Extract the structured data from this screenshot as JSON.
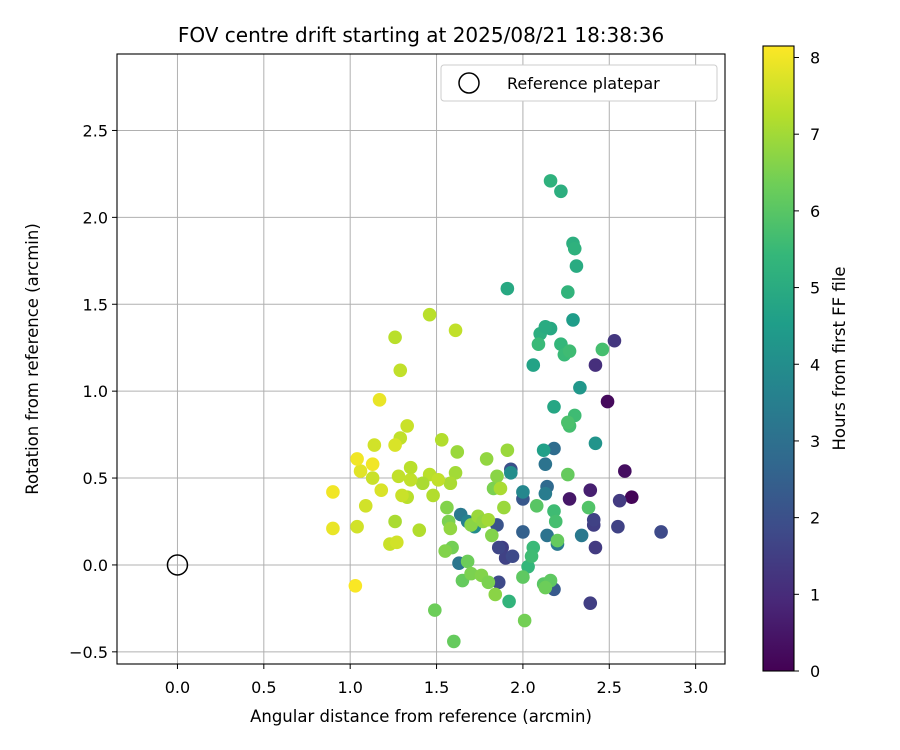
{
  "chart_data": {
    "type": "scatter",
    "title": "FOV centre drift starting at 2025/08/21 18:38:36",
    "xlabel": "Angular distance from reference (arcmin)",
    "ylabel": "Rotation from reference (arcmin)",
    "xlim": [
      -0.35,
      3.17
    ],
    "ylim": [
      -0.57,
      2.94
    ],
    "xticks": [
      "0.0",
      "0.5",
      "1.0",
      "1.5",
      "2.0",
      "2.5",
      "3.0"
    ],
    "xtick_values": [
      0,
      0.5,
      1.0,
      1.5,
      2.0,
      2.5,
      3.0
    ],
    "yticks": [
      "−0.5",
      "0.0",
      "0.5",
      "1.0",
      "1.5",
      "2.0",
      "2.5"
    ],
    "ytick_values": [
      -0.5,
      0,
      0.5,
      1.0,
      1.5,
      2.0,
      2.5
    ],
    "grid": true,
    "legend": {
      "label": "Reference platepar",
      "placement": "top-right"
    },
    "reference_point": {
      "x": 0.0,
      "y": 0.0
    },
    "colorbar": {
      "label": "Hours from first FF file",
      "colormap": "viridis",
      "min": 0,
      "max": 8.15,
      "ticks": [
        "0",
        "1",
        "2",
        "3",
        "4",
        "5",
        "6",
        "7",
        "8"
      ],
      "tick_values": [
        0,
        1,
        2,
        3,
        4,
        5,
        6,
        7,
        8
      ]
    },
    "points": [
      {
        "x": 2.63,
        "y": 0.39,
        "hours": 0.1
      },
      {
        "x": 2.49,
        "y": 0.94,
        "hours": 0.2
      },
      {
        "x": 2.59,
        "y": 0.54,
        "hours": 0.3
      },
      {
        "x": 2.27,
        "y": 0.38,
        "hours": 0.5
      },
      {
        "x": 2.39,
        "y": 0.43,
        "hours": 0.7
      },
      {
        "x": 2.42,
        "y": 1.15,
        "hours": 1.1
      },
      {
        "x": 2.53,
        "y": 1.29,
        "hours": 1.3
      },
      {
        "x": 2.56,
        "y": 0.37,
        "hours": 1.4
      },
      {
        "x": 2.42,
        "y": 0.1,
        "hours": 1.4
      },
      {
        "x": 2.41,
        "y": 0.23,
        "hours": 1.5
      },
      {
        "x": 2.41,
        "y": 0.26,
        "hours": 1.6
      },
      {
        "x": 2.39,
        "y": -0.22,
        "hours": 1.5
      },
      {
        "x": 2.55,
        "y": 0.22,
        "hours": 1.6
      },
      {
        "x": 2.8,
        "y": 0.19,
        "hours": 1.8
      },
      {
        "x": 1.88,
        "y": 0.1,
        "hours": 1.5
      },
      {
        "x": 1.9,
        "y": 0.04,
        "hours": 1.6
      },
      {
        "x": 1.94,
        "y": 0.05,
        "hours": 1.8
      },
      {
        "x": 1.86,
        "y": 0.1,
        "hours": 1.7
      },
      {
        "x": 1.86,
        "y": -0.1,
        "hours": 1.8
      },
      {
        "x": 1.93,
        "y": 0.55,
        "hours": 2.0
      },
      {
        "x": 1.85,
        "y": 0.23,
        "hours": 2.1
      },
      {
        "x": 2.0,
        "y": 0.38,
        "hours": 2.2
      },
      {
        "x": 2.18,
        "y": -0.14,
        "hours": 2.3
      },
      {
        "x": 2.0,
        "y": 0.19,
        "hours": 2.5
      },
      {
        "x": 2.14,
        "y": 0.45,
        "hours": 2.8
      },
      {
        "x": 2.18,
        "y": 0.67,
        "hours": 2.9
      },
      {
        "x": 2.13,
        "y": 0.58,
        "hours": 3.1
      },
      {
        "x": 2.14,
        "y": 0.17,
        "hours": 3.1
      },
      {
        "x": 2.2,
        "y": 0.12,
        "hours": 3.3
      },
      {
        "x": 2.34,
        "y": 0.17,
        "hours": 3.3
      },
      {
        "x": 1.63,
        "y": 0.01,
        "hours": 3.2
      },
      {
        "x": 1.64,
        "y": 0.29,
        "hours": 3.3
      },
      {
        "x": 1.68,
        "y": 0.25,
        "hours": 3.6
      },
      {
        "x": 1.72,
        "y": 0.22,
        "hours": 3.9
      },
      {
        "x": 2.13,
        "y": 0.41,
        "hours": 3.4
      },
      {
        "x": 2.0,
        "y": 0.42,
        "hours": 3.8
      },
      {
        "x": 1.93,
        "y": 0.53,
        "hours": 4.0
      },
      {
        "x": 2.42,
        "y": 0.7,
        "hours": 4.2
      },
      {
        "x": 2.33,
        "y": 1.02,
        "hours": 4.3
      },
      {
        "x": 2.29,
        "y": 1.41,
        "hours": 4.5
      },
      {
        "x": 2.18,
        "y": 0.91,
        "hours": 4.8
      },
      {
        "x": 2.12,
        "y": 0.66,
        "hours": 4.6
      },
      {
        "x": 2.06,
        "y": 1.15,
        "hours": 4.7
      },
      {
        "x": 1.91,
        "y": 1.59,
        "hours": 4.9
      },
      {
        "x": 2.16,
        "y": 1.36,
        "hours": 4.9
      },
      {
        "x": 2.1,
        "y": 1.33,
        "hours": 5.1
      },
      {
        "x": 2.13,
        "y": 1.37,
        "hours": 5.0
      },
      {
        "x": 2.31,
        "y": 1.72,
        "hours": 5.0
      },
      {
        "x": 2.29,
        "y": 1.85,
        "hours": 5.1
      },
      {
        "x": 2.3,
        "y": 1.82,
        "hours": 5.2
      },
      {
        "x": 2.22,
        "y": 2.15,
        "hours": 5.1
      },
      {
        "x": 2.16,
        "y": 2.21,
        "hours": 5.2
      },
      {
        "x": 2.26,
        "y": 1.57,
        "hours": 5.3
      },
      {
        "x": 2.22,
        "y": 1.27,
        "hours": 5.4
      },
      {
        "x": 2.24,
        "y": 1.21,
        "hours": 5.5
      },
      {
        "x": 2.27,
        "y": 1.23,
        "hours": 5.6
      },
      {
        "x": 2.46,
        "y": 1.24,
        "hours": 5.7
      },
      {
        "x": 2.09,
        "y": 1.27,
        "hours": 5.5
      },
      {
        "x": 2.3,
        "y": 0.86,
        "hours": 5.6
      },
      {
        "x": 2.27,
        "y": 0.8,
        "hours": 5.7
      },
      {
        "x": 2.26,
        "y": 0.82,
        "hours": 5.8
      },
      {
        "x": 2.18,
        "y": 0.31,
        "hours": 5.6
      },
      {
        "x": 2.19,
        "y": 0.25,
        "hours": 5.7
      },
      {
        "x": 2.06,
        "y": 0.1,
        "hours": 5.5
      },
      {
        "x": 2.03,
        "y": -0.01,
        "hours": 5.4
      },
      {
        "x": 1.92,
        "y": -0.21,
        "hours": 5.3
      },
      {
        "x": 2.05,
        "y": 0.05,
        "hours": 5.6
      },
      {
        "x": 2.38,
        "y": 0.33,
        "hours": 5.9
      },
      {
        "x": 2.08,
        "y": 0.34,
        "hours": 6.0
      },
      {
        "x": 2.12,
        "y": -0.11,
        "hours": 6.0
      },
      {
        "x": 2.16,
        "y": -0.09,
        "hours": 6.1
      },
      {
        "x": 2.2,
        "y": 0.14,
        "hours": 6.2
      },
      {
        "x": 2.26,
        "y": 0.52,
        "hours": 6.2
      },
      {
        "x": 2.0,
        "y": -0.07,
        "hours": 6.1
      },
      {
        "x": 2.13,
        "y": -0.13,
        "hours": 6.3
      },
      {
        "x": 2.01,
        "y": -0.32,
        "hours": 6.4
      },
      {
        "x": 1.6,
        "y": -0.44,
        "hours": 6.2
      },
      {
        "x": 1.49,
        "y": -0.26,
        "hours": 6.3
      },
      {
        "x": 1.65,
        "y": -0.09,
        "hours": 6.2
      },
      {
        "x": 1.68,
        "y": 0.02,
        "hours": 6.3
      },
      {
        "x": 1.7,
        "y": -0.05,
        "hours": 6.5
      },
      {
        "x": 1.76,
        "y": -0.06,
        "hours": 6.6
      },
      {
        "x": 1.8,
        "y": -0.1,
        "hours": 6.5
      },
      {
        "x": 1.84,
        "y": -0.17,
        "hours": 6.7
      },
      {
        "x": 1.59,
        "y": 0.1,
        "hours": 6.4
      },
      {
        "x": 1.55,
        "y": 0.08,
        "hours": 6.6
      },
      {
        "x": 1.57,
        "y": 0.25,
        "hours": 6.5
      },
      {
        "x": 1.56,
        "y": 0.33,
        "hours": 6.6
      },
      {
        "x": 1.58,
        "y": 0.21,
        "hours": 6.8
      },
      {
        "x": 1.7,
        "y": 0.23,
        "hours": 6.7
      },
      {
        "x": 1.74,
        "y": 0.28,
        "hours": 6.9
      },
      {
        "x": 1.77,
        "y": 0.25,
        "hours": 6.8
      },
      {
        "x": 1.8,
        "y": 0.26,
        "hours": 7.0
      },
      {
        "x": 1.82,
        "y": 0.17,
        "hours": 6.6
      },
      {
        "x": 1.83,
        "y": 0.44,
        "hours": 6.5
      },
      {
        "x": 1.85,
        "y": 0.51,
        "hours": 6.7
      },
      {
        "x": 1.79,
        "y": 0.61,
        "hours": 6.8
      },
      {
        "x": 1.91,
        "y": 0.66,
        "hours": 6.9
      },
      {
        "x": 1.89,
        "y": 0.33,
        "hours": 6.9
      },
      {
        "x": 1.87,
        "y": 0.44,
        "hours": 7.1
      },
      {
        "x": 1.62,
        "y": 0.65,
        "hours": 6.9
      },
      {
        "x": 1.61,
        "y": 0.53,
        "hours": 7.0
      },
      {
        "x": 1.58,
        "y": 0.47,
        "hours": 7.1
      },
      {
        "x": 1.53,
        "y": 0.72,
        "hours": 7.2
      },
      {
        "x": 1.46,
        "y": 0.52,
        "hours": 7.3
      },
      {
        "x": 1.42,
        "y": 0.47,
        "hours": 7.1
      },
      {
        "x": 1.48,
        "y": 0.4,
        "hours": 7.2
      },
      {
        "x": 1.51,
        "y": 0.49,
        "hours": 7.4
      },
      {
        "x": 1.4,
        "y": 0.2,
        "hours": 7.2
      },
      {
        "x": 1.33,
        "y": 0.39,
        "hours": 7.3
      },
      {
        "x": 1.3,
        "y": 0.4,
        "hours": 7.5
      },
      {
        "x": 1.35,
        "y": 0.49,
        "hours": 7.4
      },
      {
        "x": 1.35,
        "y": 0.56,
        "hours": 7.3
      },
      {
        "x": 1.28,
        "y": 0.51,
        "hours": 7.4
      },
      {
        "x": 1.26,
        "y": 0.25,
        "hours": 7.1
      },
      {
        "x": 1.23,
        "y": 0.12,
        "hours": 7.5
      },
      {
        "x": 1.27,
        "y": 0.13,
        "hours": 7.6
      },
      {
        "x": 1.29,
        "y": 0.73,
        "hours": 7.4
      },
      {
        "x": 1.33,
        "y": 0.8,
        "hours": 7.5
      },
      {
        "x": 1.26,
        "y": 0.69,
        "hours": 7.7
      },
      {
        "x": 1.14,
        "y": 0.69,
        "hours": 7.6
      },
      {
        "x": 1.13,
        "y": 0.5,
        "hours": 7.5
      },
      {
        "x": 1.18,
        "y": 0.43,
        "hours": 7.7
      },
      {
        "x": 1.09,
        "y": 0.34,
        "hours": 7.6
      },
      {
        "x": 1.06,
        "y": 0.54,
        "hours": 7.8
      },
      {
        "x": 1.04,
        "y": 0.22,
        "hours": 7.6
      },
      {
        "x": 1.26,
        "y": 1.31,
        "hours": 7.3
      },
      {
        "x": 1.29,
        "y": 1.12,
        "hours": 7.4
      },
      {
        "x": 1.46,
        "y": 1.44,
        "hours": 7.3
      },
      {
        "x": 1.61,
        "y": 1.35,
        "hours": 7.4
      },
      {
        "x": 1.17,
        "y": 0.95,
        "hours": 7.9
      },
      {
        "x": 1.13,
        "y": 0.58,
        "hours": 8.0
      },
      {
        "x": 1.04,
        "y": 0.61,
        "hours": 8.0
      },
      {
        "x": 0.9,
        "y": 0.42,
        "hours": 8.0
      },
      {
        "x": 0.9,
        "y": 0.21,
        "hours": 7.9
      },
      {
        "x": 1.03,
        "y": -0.12,
        "hours": 8.1
      }
    ]
  }
}
